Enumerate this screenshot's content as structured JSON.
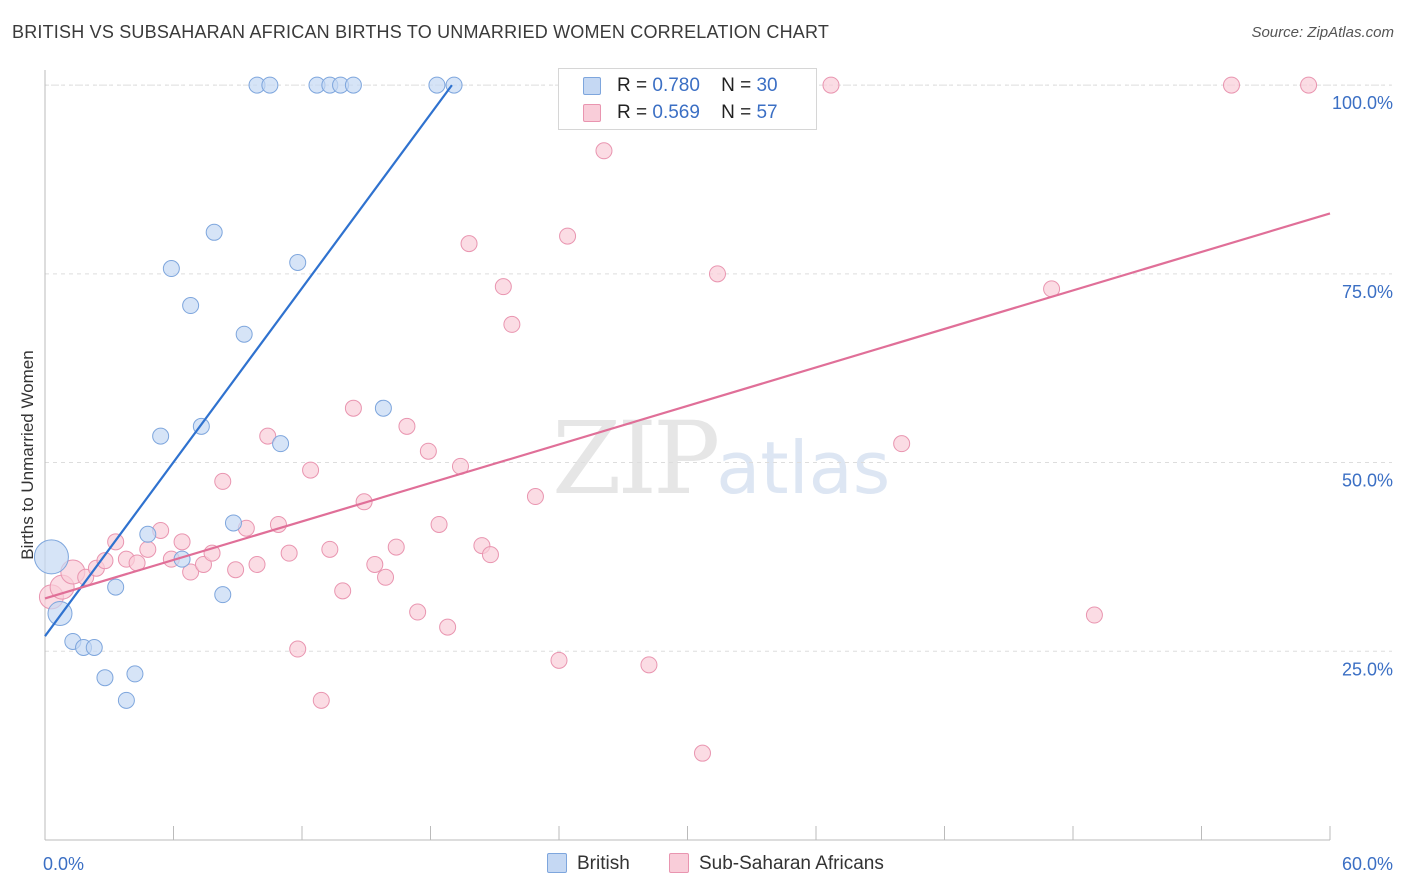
{
  "header": {
    "title": "BRITISH VS SUBSAHARAN AFRICAN BIRTHS TO UNMARRIED WOMEN CORRELATION CHART",
    "source": "Source: ZipAtlas.com"
  },
  "watermark": {
    "zip": "ZIP",
    "atlas": "atlas"
  },
  "legend": {
    "british": {
      "r_label": "R =",
      "r": "0.780",
      "n_label": "N =",
      "n": "30"
    },
    "subsaharan": {
      "r_label": "R =",
      "r": "0.569",
      "n_label": "N =",
      "n": "57"
    }
  },
  "colors": {
    "british_fill": "#c5d8f3",
    "british_stroke": "#7ea6dd",
    "british_line": "#2f72cf",
    "subsaharan_fill": "#f9cdd9",
    "subsaharan_stroke": "#e995b0",
    "subsaharan_line": "#e06f98",
    "axis_label": "#3b6fc4",
    "grid": "#dddddd"
  },
  "chart_data": {
    "type": "scatter",
    "title": "BRITISH VS SUBSAHARAN AFRICAN BIRTHS TO UNMARRIED WOMEN CORRELATION CHART",
    "xlabel": "",
    "ylabel": "Births to Unmarried Women",
    "xlim": [
      0,
      60
    ],
    "ylim": [
      0,
      102
    ],
    "x_tick_labels": [
      "0.0%",
      "60.0%"
    ],
    "y_ticks": [
      25,
      50,
      75,
      100
    ],
    "y_tick_labels": [
      "25.0%",
      "50.0%",
      "75.0%",
      "100.0%"
    ],
    "grid": "horizontal dashed",
    "legend_position": "top-center",
    "series": [
      {
        "name": "British",
        "r": 0.78,
        "n": 30,
        "trend": {
          "x": [
            0,
            19.0
          ],
          "y": [
            27.0,
            100.0
          ]
        },
        "points": [
          {
            "x": 0.3,
            "y": 37.5,
            "s": 3
          },
          {
            "x": 0.7,
            "y": 30,
            "s": 2
          },
          {
            "x": 1.3,
            "y": 26.3,
            "s": 1
          },
          {
            "x": 1.8,
            "y": 25.5,
            "s": 1
          },
          {
            "x": 2.3,
            "y": 25.5,
            "s": 1
          },
          {
            "x": 2.8,
            "y": 21.5,
            "s": 1
          },
          {
            "x": 3.3,
            "y": 33.5,
            "s": 1
          },
          {
            "x": 3.8,
            "y": 18.5,
            "s": 1
          },
          {
            "x": 4.2,
            "y": 22,
            "s": 1
          },
          {
            "x": 4.8,
            "y": 40.5,
            "s": 1
          },
          {
            "x": 5.4,
            "y": 53.5,
            "s": 1
          },
          {
            "x": 5.9,
            "y": 75.7,
            "s": 1
          },
          {
            "x": 6.4,
            "y": 37.2,
            "s": 1
          },
          {
            "x": 6.8,
            "y": 70.8,
            "s": 1
          },
          {
            "x": 7.3,
            "y": 54.8,
            "s": 1
          },
          {
            "x": 7.9,
            "y": 80.5,
            "s": 1
          },
          {
            "x": 8.3,
            "y": 32.5,
            "s": 1
          },
          {
            "x": 8.8,
            "y": 42,
            "s": 1
          },
          {
            "x": 9.3,
            "y": 67,
            "s": 1
          },
          {
            "x": 9.9,
            "y": 100,
            "s": 1
          },
          {
            "x": 10.5,
            "y": 100,
            "s": 1
          },
          {
            "x": 11.0,
            "y": 52.5,
            "s": 1
          },
          {
            "x": 11.8,
            "y": 76.5,
            "s": 1
          },
          {
            "x": 12.7,
            "y": 100,
            "s": 1
          },
          {
            "x": 13.3,
            "y": 100,
            "s": 1
          },
          {
            "x": 13.8,
            "y": 100,
            "s": 1
          },
          {
            "x": 14.4,
            "y": 100,
            "s": 1
          },
          {
            "x": 15.8,
            "y": 57.2,
            "s": 1
          },
          {
            "x": 18.3,
            "y": 100,
            "s": 1
          },
          {
            "x": 19.1,
            "y": 100,
            "s": 1
          }
        ]
      },
      {
        "name": "Sub-Saharan Africans",
        "r": 0.569,
        "n": 57,
        "trend": {
          "x": [
            0,
            60
          ],
          "y": [
            32.0,
            83.0
          ]
        },
        "points": [
          {
            "x": 0.3,
            "y": 32.2,
            "s": 2
          },
          {
            "x": 0.8,
            "y": 33.5,
            "s": 2
          },
          {
            "x": 1.3,
            "y": 35.5,
            "s": 2
          },
          {
            "x": 1.9,
            "y": 34.8,
            "s": 1
          },
          {
            "x": 2.4,
            "y": 36,
            "s": 1
          },
          {
            "x": 2.8,
            "y": 37,
            "s": 1
          },
          {
            "x": 3.3,
            "y": 39.5,
            "s": 1
          },
          {
            "x": 3.8,
            "y": 37.2,
            "s": 1
          },
          {
            "x": 4.3,
            "y": 36.7,
            "s": 1
          },
          {
            "x": 4.8,
            "y": 38.5,
            "s": 1
          },
          {
            "x": 5.4,
            "y": 41,
            "s": 1
          },
          {
            "x": 5.9,
            "y": 37.2,
            "s": 1
          },
          {
            "x": 6.4,
            "y": 39.5,
            "s": 1
          },
          {
            "x": 6.8,
            "y": 35.5,
            "s": 1
          },
          {
            "x": 7.4,
            "y": 36.5,
            "s": 1
          },
          {
            "x": 7.8,
            "y": 38,
            "s": 1
          },
          {
            "x": 8.3,
            "y": 47.5,
            "s": 1
          },
          {
            "x": 8.9,
            "y": 35.8,
            "s": 1
          },
          {
            "x": 9.4,
            "y": 41.3,
            "s": 1
          },
          {
            "x": 9.9,
            "y": 36.5,
            "s": 1
          },
          {
            "x": 10.4,
            "y": 53.5,
            "s": 1
          },
          {
            "x": 10.9,
            "y": 41.8,
            "s": 1
          },
          {
            "x": 11.4,
            "y": 38,
            "s": 1
          },
          {
            "x": 11.8,
            "y": 25.3,
            "s": 1
          },
          {
            "x": 12.4,
            "y": 49,
            "s": 1
          },
          {
            "x": 12.9,
            "y": 18.5,
            "s": 1
          },
          {
            "x": 13.3,
            "y": 38.5,
            "s": 1
          },
          {
            "x": 13.9,
            "y": 33,
            "s": 1
          },
          {
            "x": 14.4,
            "y": 57.2,
            "s": 1
          },
          {
            "x": 14.9,
            "y": 44.8,
            "s": 1
          },
          {
            "x": 15.4,
            "y": 36.5,
            "s": 1
          },
          {
            "x": 15.9,
            "y": 34.8,
            "s": 1
          },
          {
            "x": 16.4,
            "y": 38.8,
            "s": 1
          },
          {
            "x": 16.9,
            "y": 54.8,
            "s": 1
          },
          {
            "x": 17.4,
            "y": 30.2,
            "s": 1
          },
          {
            "x": 17.9,
            "y": 51.5,
            "s": 1
          },
          {
            "x": 18.4,
            "y": 41.8,
            "s": 1
          },
          {
            "x": 18.8,
            "y": 28.2,
            "s": 1
          },
          {
            "x": 19.4,
            "y": 49.5,
            "s": 1
          },
          {
            "x": 19.8,
            "y": 79,
            "s": 1
          },
          {
            "x": 20.4,
            "y": 39,
            "s": 1
          },
          {
            "x": 20.8,
            "y": 37.8,
            "s": 1
          },
          {
            "x": 21.4,
            "y": 73.3,
            "s": 1
          },
          {
            "x": 21.8,
            "y": 68.3,
            "s": 1
          },
          {
            "x": 22.9,
            "y": 45.5,
            "s": 1
          },
          {
            "x": 24.0,
            "y": 23.8,
            "s": 1
          },
          {
            "x": 24.4,
            "y": 80,
            "s": 1
          },
          {
            "x": 26.1,
            "y": 91.3,
            "s": 1
          },
          {
            "x": 28.2,
            "y": 23.2,
            "s": 1
          },
          {
            "x": 30.7,
            "y": 11.5,
            "s": 1
          },
          {
            "x": 31.4,
            "y": 75,
            "s": 1
          },
          {
            "x": 36.7,
            "y": 100,
            "s": 1
          },
          {
            "x": 40.0,
            "y": 52.5,
            "s": 1
          },
          {
            "x": 47.0,
            "y": 73,
            "s": 1
          },
          {
            "x": 49.0,
            "y": 29.8,
            "s": 1
          },
          {
            "x": 55.4,
            "y": 100,
            "s": 1
          },
          {
            "x": 59.0,
            "y": 100,
            "s": 1
          }
        ]
      }
    ]
  }
}
